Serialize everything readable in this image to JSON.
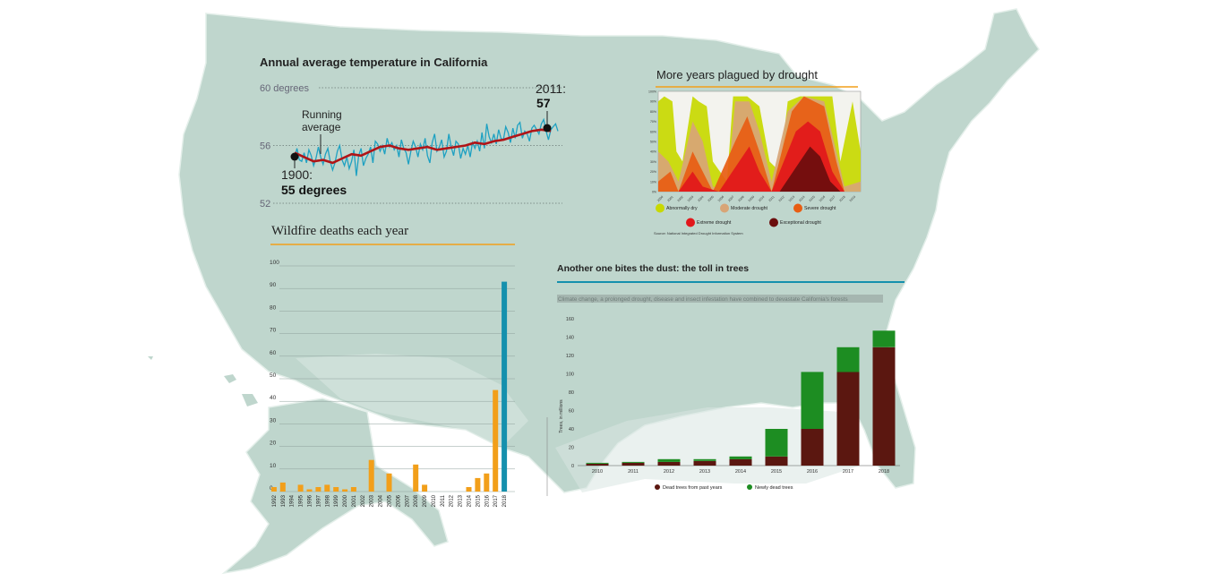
{
  "colors": {
    "map_fill": "#bfd6cd",
    "map_stroke": "#e3eee9",
    "temp_line": "#1ea1c2",
    "running_avg": "#b01417",
    "orange": "#f29f1a",
    "teal": "#1590ad",
    "dark_red": "#5b1710",
    "green": "#1d8d22"
  },
  "chart_data": [
    {
      "id": "temperature",
      "type": "line",
      "title": "Annual average temperature in California",
      "y_ticks": [
        "60 degrees",
        "56",
        "52"
      ],
      "ylim": [
        52,
        60
      ],
      "xlim": [
        1900,
        2011
      ],
      "series": [
        {
          "values": [
            55.2,
            55.8,
            55.0,
            54.9,
            55.5,
            54.8,
            55.7,
            55.3,
            54.6,
            55.1,
            55.9,
            55.2,
            54.7,
            55.4,
            55.8,
            54.9,
            54.3,
            54.8,
            55.6,
            56.0,
            55.0,
            54.6,
            55.2,
            54.4,
            54.9,
            55.7,
            53.9,
            55.3,
            55.8,
            54.6,
            55.1,
            55.4,
            55.9,
            54.8,
            56.3,
            56.1,
            55.6,
            56.0,
            55.4,
            56.5,
            55.9,
            56.2,
            55.7,
            56.0,
            55.2,
            56.4,
            55.8,
            55.5,
            54.7,
            55.6,
            56.3,
            55.9,
            55.2,
            56.1,
            55.7,
            56.5,
            55.3,
            54.8,
            56.2,
            56.8,
            55.6,
            55.9,
            56.4,
            55.2,
            55.6,
            56.8,
            55.9,
            55.3,
            56.3,
            56.1,
            55.1,
            55.8,
            55.4,
            56.0,
            55.2,
            56.2,
            55.8,
            56.3,
            55.6,
            56.9,
            55.8,
            57.5,
            56.6,
            56.2,
            56.8,
            56.1,
            57.1,
            56.5,
            56.4,
            57.3,
            56.9,
            56.2,
            57.2,
            56.5,
            57.4,
            57.6,
            56.5,
            57.0,
            56.8,
            56.3,
            57.2,
            57.4,
            57.1,
            56.8,
            57.5,
            57.8,
            57.0,
            56.4,
            57.1,
            57.3,
            57.5,
            57.0
          ],
          "start_year": 1900
        },
        {
          "values": [
            55.5,
            55.2,
            54.9,
            55.0,
            54.8,
            55.1,
            55.4,
            55.3,
            55.6,
            55.9,
            56.0,
            55.8,
            55.7,
            55.8,
            55.9,
            55.7,
            55.8,
            55.9,
            56.0,
            56.2,
            56.1,
            56.3,
            56.4,
            56.6,
            56.8,
            57.0,
            57.1,
            57.0
          ],
          "x_step": 4,
          "start_year": 1900
        }
      ],
      "annotations": {
        "running": "Running\naverage",
        "start_year": "1900:",
        "start_val": "55 degrees",
        "end_year": "2011:",
        "end_val": "57"
      }
    },
    {
      "id": "drought",
      "type": "area",
      "title": "More years plagued by drought",
      "y_ticks": [
        "100%",
        "90%",
        "80%",
        "70%",
        "60%",
        "50%",
        "40%",
        "30%",
        "20%",
        "10%",
        "0%"
      ],
      "x_labels": [
        "2000",
        "2001",
        "2002",
        "2003",
        "2004",
        "2005",
        "2006",
        "2007",
        "2008",
        "2009",
        "2010",
        "2011",
        "2012",
        "2013",
        "2014",
        "2015",
        "2016",
        "2017",
        "2018",
        "2019"
      ],
      "legend": [
        {
          "label": "Abnormally dry",
          "color": "#c8d900"
        },
        {
          "label": "Moderate drought",
          "color": "#d8a577"
        },
        {
          "label": "Severe drought",
          "color": "#e85d12"
        },
        {
          "label": "Extreme drought",
          "color": "#e2171b"
        },
        {
          "label": "Exceptional drought",
          "color": "#6b0d0d"
        }
      ],
      "source": "Source: National Integrated Drought Information System"
    },
    {
      "id": "wildfire",
      "type": "bar",
      "title": "Wildfire deaths each year",
      "ylim": [
        0,
        100
      ],
      "y_ticks": [
        0,
        10,
        20,
        30,
        40,
        50,
        60,
        70,
        80,
        90,
        100
      ],
      "categories": [
        "1992",
        "1993",
        "1994",
        "1995",
        "1996",
        "1997",
        "1998",
        "1999",
        "2000",
        "2001",
        "2002",
        "2003",
        "2004",
        "2005",
        "2006",
        "2007",
        "2008",
        "2009",
        "2010",
        "2011",
        "2012",
        "2013",
        "2014",
        "2015",
        "2016",
        "2017",
        "2018"
      ],
      "values": [
        2,
        4,
        0,
        3,
        1,
        2,
        3,
        2,
        1,
        2,
        0,
        14,
        0,
        8,
        0,
        0,
        12,
        3,
        0,
        0,
        0,
        0,
        2,
        6,
        8,
        45,
        93
      ]
    },
    {
      "id": "trees",
      "type": "bar",
      "title": "Another one bites the dust: the toll in trees",
      "subtitle": "Climate change, a prolonged drought, disease and insect infestation have combined to devastate California's forests",
      "ylabel": "Trees, in millions",
      "ylim": [
        0,
        160
      ],
      "y_ticks": [
        0,
        20,
        40,
        60,
        80,
        100,
        120,
        140,
        160
      ],
      "categories": [
        "2010",
        "2011",
        "2012",
        "2013",
        "2014",
        "2015",
        "2016",
        "2017",
        "2018"
      ],
      "series": [
        {
          "name": "Dead trees from past years",
          "values": [
            2,
            3,
            4,
            5,
            7,
            10,
            40,
            102,
            129
          ]
        },
        {
          "name": "Newly dead trees",
          "values": [
            1,
            1,
            3,
            2,
            3,
            30,
            62,
            27,
            18
          ]
        }
      ]
    }
  ]
}
